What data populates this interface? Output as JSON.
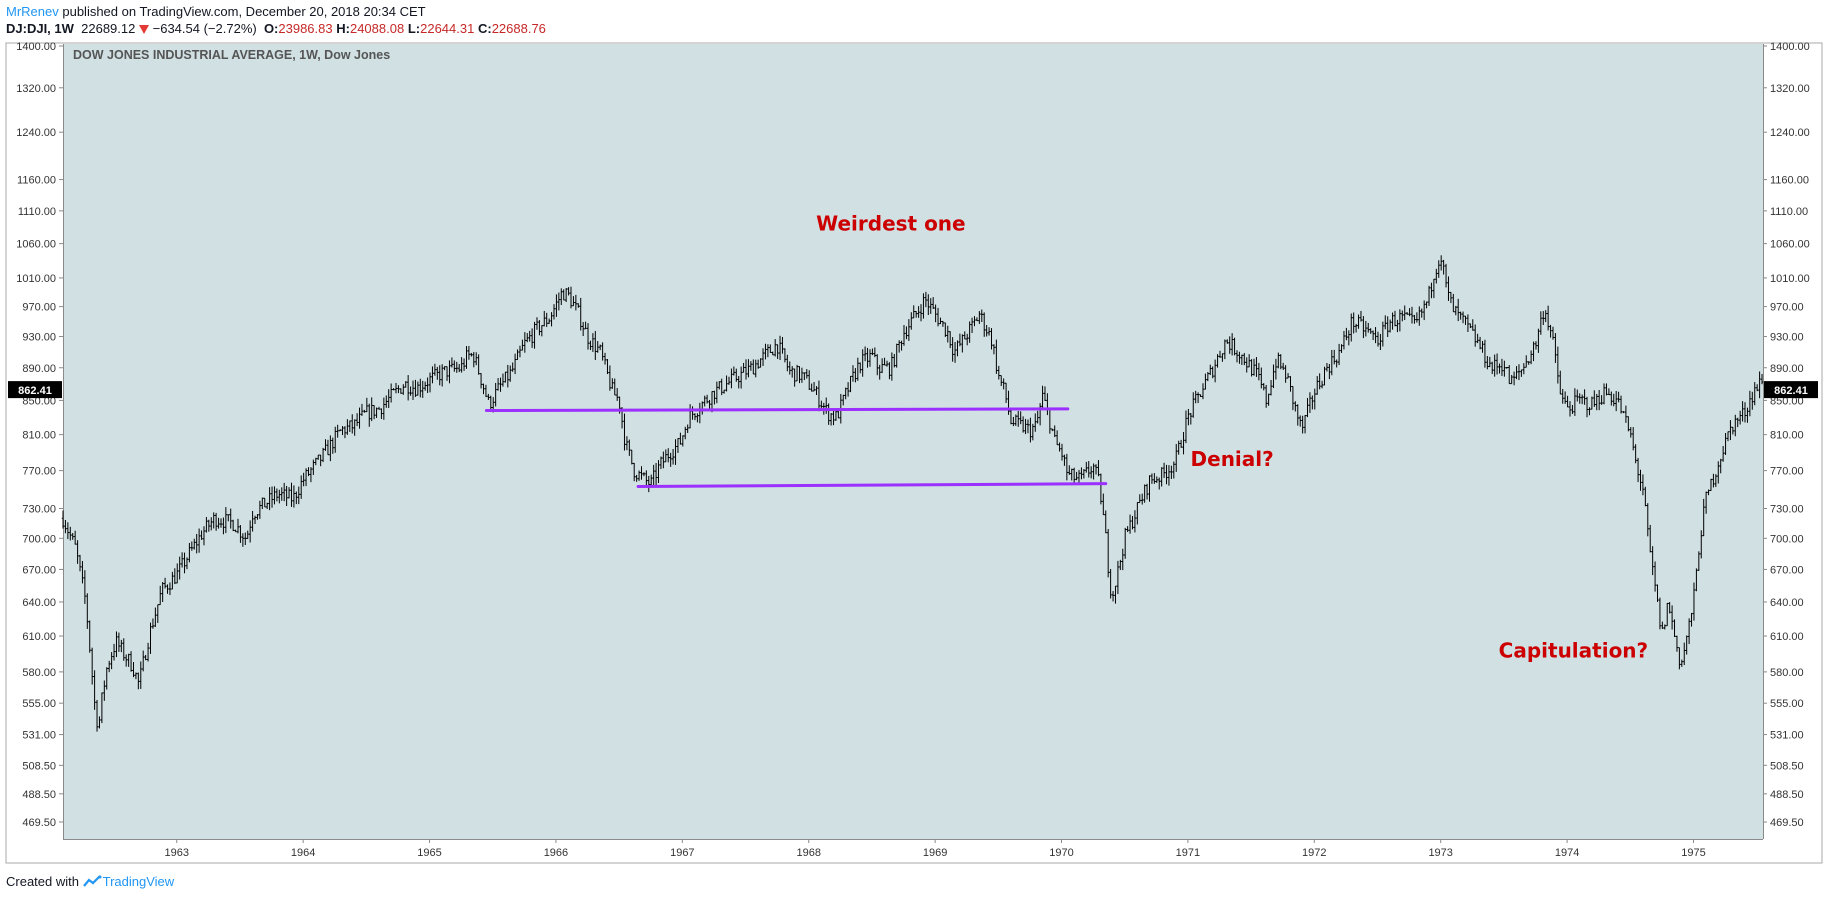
{
  "header": {
    "author": "MrRenev",
    "published_text": " published on TradingView.com, December 20, 2018 20:34 CET",
    "symbol": "DJ:DJI, 1W",
    "last": "22689.12",
    "change": "−634.54 (−2.72%)",
    "open_label": "O:",
    "open": "23986.83",
    "high_label": "H:",
    "high": "24088.08",
    "low_label": "L:",
    "low": "22644.31",
    "close_label": "C:",
    "close": "22688.76"
  },
  "footer": {
    "created_with": "Created with",
    "brand": "TradingView"
  },
  "colors": {
    "plot_background": "#d0e0e3",
    "candles": "#000000",
    "trendlines": "#9b30ff",
    "annotations": "#cc0000",
    "down_arrow": "#e53935",
    "price_tag": "#000000"
  },
  "chart_data": {
    "type": "candlestick",
    "title": "DOW JONES INDUSTRIAL AVERAGE, 1W, Dow Jones",
    "timeframe": "1W",
    "price_scale": "log",
    "ylim": [
      469.5,
      1400.0
    ],
    "y_ticks": [
      "1400.00",
      "1320.00",
      "1240.00",
      "1160.00",
      "1110.00",
      "1060.00",
      "1010.00",
      "970.00",
      "930.00",
      "890.00",
      "850.00",
      "810.00",
      "770.00",
      "730.00",
      "700.00",
      "670.00",
      "640.00",
      "610.00",
      "580.00",
      "555.00",
      "531.00",
      "508.50",
      "488.50",
      "469.50"
    ],
    "x_ticks": [
      "1963",
      "1964",
      "1965",
      "1966",
      "1967",
      "1968",
      "1969",
      "1970",
      "1971",
      "1972",
      "1973",
      "1974",
      "1975"
    ],
    "current_price_label": "862.41",
    "current_price": 862.41,
    "xlim": [
      1962.1,
      1975.55
    ],
    "series": [
      {
        "points": [
          [
            1962.1,
            720
          ],
          [
            1962.2,
            690
          ],
          [
            1962.28,
            640
          ],
          [
            1962.35,
            555
          ],
          [
            1962.38,
            535
          ],
          [
            1962.41,
            560
          ],
          [
            1962.45,
            585
          ],
          [
            1962.52,
            605
          ],
          [
            1962.58,
            595
          ],
          [
            1962.65,
            585
          ],
          [
            1962.7,
            570
          ],
          [
            1962.78,
            610
          ],
          [
            1962.88,
            650
          ],
          [
            1963.0,
            665
          ],
          [
            1963.1,
            685
          ],
          [
            1963.2,
            705
          ],
          [
            1963.3,
            720
          ],
          [
            1963.45,
            715
          ],
          [
            1963.55,
            700
          ],
          [
            1963.6,
            725
          ],
          [
            1963.7,
            735
          ],
          [
            1963.8,
            745
          ],
          [
            1963.92,
            740
          ],
          [
            1964.0,
            760
          ],
          [
            1964.15,
            785
          ],
          [
            1964.3,
            815
          ],
          [
            1964.4,
            820
          ],
          [
            1964.5,
            835
          ],
          [
            1964.6,
            840
          ],
          [
            1964.7,
            855
          ],
          [
            1964.8,
            870
          ],
          [
            1964.9,
            865
          ],
          [
            1965.0,
            875
          ],
          [
            1965.12,
            885
          ],
          [
            1965.25,
            890
          ],
          [
            1965.3,
            905
          ],
          [
            1965.35,
            905
          ],
          [
            1965.42,
            870
          ],
          [
            1965.47,
            845
          ],
          [
            1965.55,
            865
          ],
          [
            1965.65,
            885
          ],
          [
            1965.75,
            920
          ],
          [
            1965.85,
            940
          ],
          [
            1965.95,
            955
          ],
          [
            1966.05,
            990
          ],
          [
            1966.1,
            985
          ],
          [
            1966.18,
            960
          ],
          [
            1966.25,
            930
          ],
          [
            1966.35,
            910
          ],
          [
            1966.45,
            860
          ],
          [
            1966.5,
            850
          ],
          [
            1966.55,
            800
          ],
          [
            1966.62,
            770
          ],
          [
            1966.7,
            760
          ],
          [
            1966.75,
            755
          ],
          [
            1966.82,
            775
          ],
          [
            1966.9,
            790
          ],
          [
            1966.98,
            800
          ],
          [
            1967.05,
            830
          ],
          [
            1967.15,
            845
          ],
          [
            1967.25,
            860
          ],
          [
            1967.35,
            870
          ],
          [
            1967.45,
            880
          ],
          [
            1967.55,
            890
          ],
          [
            1967.65,
            905
          ],
          [
            1967.75,
            920
          ],
          [
            1967.85,
            885
          ],
          [
            1967.95,
            880
          ],
          [
            1968.05,
            860
          ],
          [
            1968.15,
            835
          ],
          [
            1968.22,
            830
          ],
          [
            1968.3,
            860
          ],
          [
            1968.4,
            895
          ],
          [
            1968.5,
            905
          ],
          [
            1968.55,
            890
          ],
          [
            1968.65,
            890
          ],
          [
            1968.75,
            935
          ],
          [
            1968.85,
            960
          ],
          [
            1968.92,
            980
          ],
          [
            1969.0,
            960
          ],
          [
            1969.1,
            935
          ],
          [
            1969.15,
            910
          ],
          [
            1969.22,
            925
          ],
          [
            1969.3,
            945
          ],
          [
            1969.35,
            960
          ],
          [
            1969.45,
            925
          ],
          [
            1969.5,
            880
          ],
          [
            1969.55,
            860
          ],
          [
            1969.6,
            825
          ],
          [
            1969.68,
            820
          ],
          [
            1969.75,
            815
          ],
          [
            1969.8,
            820
          ],
          [
            1969.85,
            855
          ],
          [
            1969.9,
            830
          ],
          [
            1969.95,
            800
          ],
          [
            1970.0,
            790
          ],
          [
            1970.05,
            765
          ],
          [
            1970.15,
            760
          ],
          [
            1970.25,
            775
          ],
          [
            1970.3,
            755
          ],
          [
            1970.35,
            700
          ],
          [
            1970.38,
            660
          ],
          [
            1970.4,
            645
          ],
          [
            1970.45,
            670
          ],
          [
            1970.5,
            700
          ],
          [
            1970.6,
            730
          ],
          [
            1970.7,
            760
          ],
          [
            1970.8,
            765
          ],
          [
            1970.9,
            780
          ],
          [
            1971.0,
            830
          ],
          [
            1971.1,
            860
          ],
          [
            1971.2,
            890
          ],
          [
            1971.3,
            925
          ],
          [
            1971.4,
            910
          ],
          [
            1971.5,
            890
          ],
          [
            1971.55,
            880
          ],
          [
            1971.62,
            850
          ],
          [
            1971.7,
            900
          ],
          [
            1971.78,
            880
          ],
          [
            1971.85,
            840
          ],
          [
            1971.9,
            815
          ],
          [
            1972.0,
            860
          ],
          [
            1972.1,
            890
          ],
          [
            1972.2,
            910
          ],
          [
            1972.3,
            950
          ],
          [
            1972.4,
            940
          ],
          [
            1972.5,
            925
          ],
          [
            1972.6,
            950
          ],
          [
            1972.7,
            955
          ],
          [
            1972.8,
            945
          ],
          [
            1972.9,
            980
          ],
          [
            1972.95,
            1020
          ],
          [
            1973.0,
            1045
          ],
          [
            1973.05,
            990
          ],
          [
            1973.1,
            965
          ],
          [
            1973.2,
            945
          ],
          [
            1973.3,
            920
          ],
          [
            1973.4,
            890
          ],
          [
            1973.5,
            895
          ],
          [
            1973.55,
            870
          ],
          [
            1973.65,
            890
          ],
          [
            1973.75,
            920
          ],
          [
            1973.82,
            970
          ],
          [
            1973.88,
            930
          ],
          [
            1973.95,
            855
          ],
          [
            1974.0,
            840
          ],
          [
            1974.1,
            850
          ],
          [
            1974.2,
            845
          ],
          [
            1974.3,
            860
          ],
          [
            1974.4,
            850
          ],
          [
            1974.5,
            810
          ],
          [
            1974.55,
            775
          ],
          [
            1974.6,
            750
          ],
          [
            1974.65,
            690
          ],
          [
            1974.7,
            650
          ],
          [
            1974.75,
            610
          ],
          [
            1974.8,
            640
          ],
          [
            1974.85,
            610
          ],
          [
            1974.9,
            585
          ],
          [
            1974.95,
            610
          ],
          [
            1975.0,
            640
          ],
          [
            1975.05,
            700
          ],
          [
            1975.1,
            740
          ],
          [
            1975.2,
            780
          ],
          [
            1975.3,
            820
          ],
          [
            1975.4,
            835
          ],
          [
            1975.48,
            862
          ],
          [
            1975.55,
            875
          ]
        ]
      }
    ],
    "trendlines": [
      {
        "from": [
          1965.45,
          838
        ],
        "to": [
          1970.05,
          840
        ]
      },
      {
        "from": [
          1966.65,
          753
        ],
        "to": [
          1970.35,
          756
        ]
      }
    ],
    "annotations": [
      {
        "text": "Weirdest one",
        "x": 1968.65,
        "y": 1080
      },
      {
        "text": "Denial?",
        "x": 1971.35,
        "y": 775
      },
      {
        "text": "Capitulation?",
        "x": 1974.05,
        "y": 592
      }
    ]
  }
}
